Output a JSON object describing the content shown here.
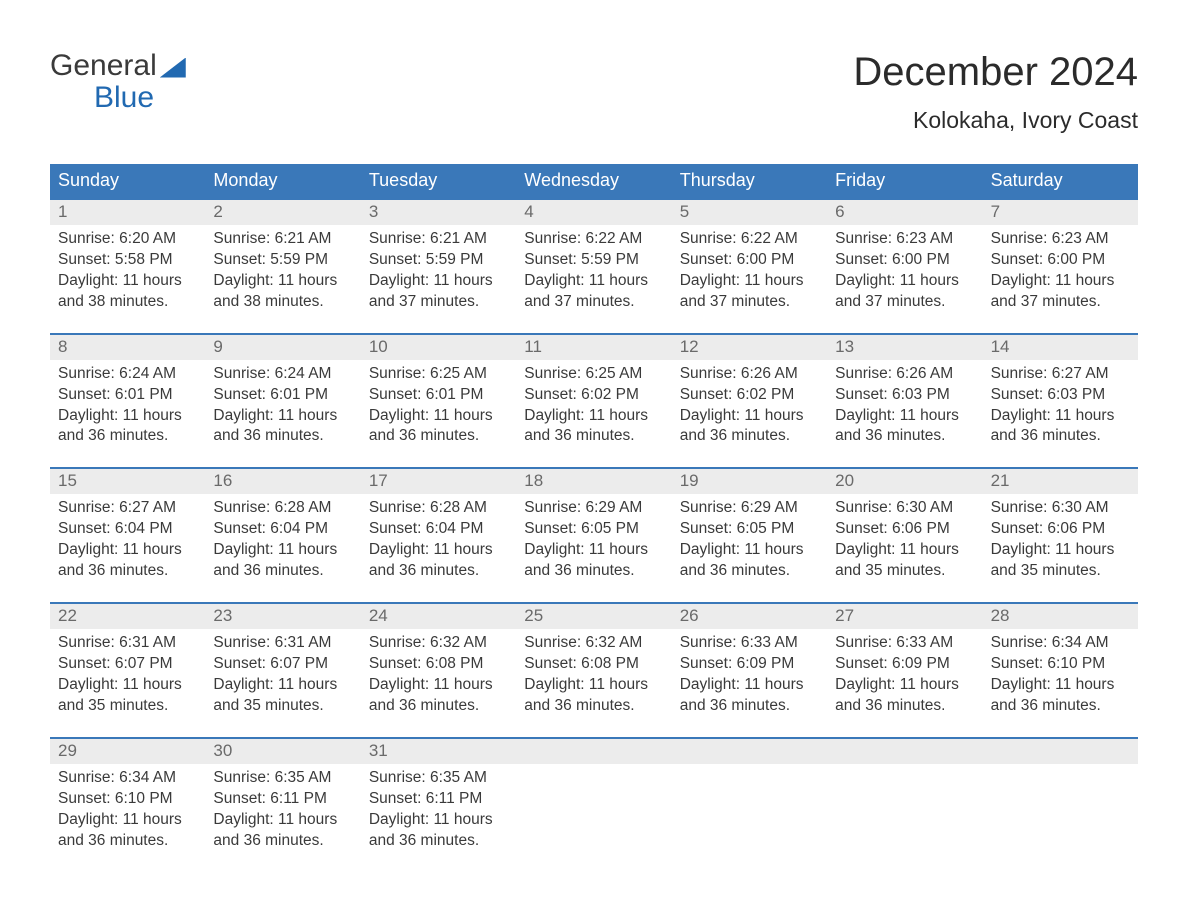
{
  "logo": {
    "text_top": "General",
    "text_bottom": "Blue"
  },
  "title": "December 2024",
  "location": "Kolokaha, Ivory Coast",
  "colors": {
    "header_bg": "#3a78b9",
    "header_text": "#ffffff",
    "row_border": "#3a78b9",
    "daynum_bg": "#ececec",
    "daynum_text": "#6a6a6a",
    "body_text": "#3a3a3a",
    "logo_blue": "#2169b1",
    "page_bg": "#ffffff"
  },
  "weekdays": [
    "Sunday",
    "Monday",
    "Tuesday",
    "Wednesday",
    "Thursday",
    "Friday",
    "Saturday"
  ],
  "weeks": [
    [
      {
        "n": "1",
        "sunrise": "6:20 AM",
        "sunset": "5:58 PM",
        "dl": "11 hours and 38 minutes."
      },
      {
        "n": "2",
        "sunrise": "6:21 AM",
        "sunset": "5:59 PM",
        "dl": "11 hours and 38 minutes."
      },
      {
        "n": "3",
        "sunrise": "6:21 AM",
        "sunset": "5:59 PM",
        "dl": "11 hours and 37 minutes."
      },
      {
        "n": "4",
        "sunrise": "6:22 AM",
        "sunset": "5:59 PM",
        "dl": "11 hours and 37 minutes."
      },
      {
        "n": "5",
        "sunrise": "6:22 AM",
        "sunset": "6:00 PM",
        "dl": "11 hours and 37 minutes."
      },
      {
        "n": "6",
        "sunrise": "6:23 AM",
        "sunset": "6:00 PM",
        "dl": "11 hours and 37 minutes."
      },
      {
        "n": "7",
        "sunrise": "6:23 AM",
        "sunset": "6:00 PM",
        "dl": "11 hours and 37 minutes."
      }
    ],
    [
      {
        "n": "8",
        "sunrise": "6:24 AM",
        "sunset": "6:01 PM",
        "dl": "11 hours and 36 minutes."
      },
      {
        "n": "9",
        "sunrise": "6:24 AM",
        "sunset": "6:01 PM",
        "dl": "11 hours and 36 minutes."
      },
      {
        "n": "10",
        "sunrise": "6:25 AM",
        "sunset": "6:01 PM",
        "dl": "11 hours and 36 minutes."
      },
      {
        "n": "11",
        "sunrise": "6:25 AM",
        "sunset": "6:02 PM",
        "dl": "11 hours and 36 minutes."
      },
      {
        "n": "12",
        "sunrise": "6:26 AM",
        "sunset": "6:02 PM",
        "dl": "11 hours and 36 minutes."
      },
      {
        "n": "13",
        "sunrise": "6:26 AM",
        "sunset": "6:03 PM",
        "dl": "11 hours and 36 minutes."
      },
      {
        "n": "14",
        "sunrise": "6:27 AM",
        "sunset": "6:03 PM",
        "dl": "11 hours and 36 minutes."
      }
    ],
    [
      {
        "n": "15",
        "sunrise": "6:27 AM",
        "sunset": "6:04 PM",
        "dl": "11 hours and 36 minutes."
      },
      {
        "n": "16",
        "sunrise": "6:28 AM",
        "sunset": "6:04 PM",
        "dl": "11 hours and 36 minutes."
      },
      {
        "n": "17",
        "sunrise": "6:28 AM",
        "sunset": "6:04 PM",
        "dl": "11 hours and 36 minutes."
      },
      {
        "n": "18",
        "sunrise": "6:29 AM",
        "sunset": "6:05 PM",
        "dl": "11 hours and 36 minutes."
      },
      {
        "n": "19",
        "sunrise": "6:29 AM",
        "sunset": "6:05 PM",
        "dl": "11 hours and 36 minutes."
      },
      {
        "n": "20",
        "sunrise": "6:30 AM",
        "sunset": "6:06 PM",
        "dl": "11 hours and 35 minutes."
      },
      {
        "n": "21",
        "sunrise": "6:30 AM",
        "sunset": "6:06 PM",
        "dl": "11 hours and 35 minutes."
      }
    ],
    [
      {
        "n": "22",
        "sunrise": "6:31 AM",
        "sunset": "6:07 PM",
        "dl": "11 hours and 35 minutes."
      },
      {
        "n": "23",
        "sunrise": "6:31 AM",
        "sunset": "6:07 PM",
        "dl": "11 hours and 35 minutes."
      },
      {
        "n": "24",
        "sunrise": "6:32 AM",
        "sunset": "6:08 PM",
        "dl": "11 hours and 36 minutes."
      },
      {
        "n": "25",
        "sunrise": "6:32 AM",
        "sunset": "6:08 PM",
        "dl": "11 hours and 36 minutes."
      },
      {
        "n": "26",
        "sunrise": "6:33 AM",
        "sunset": "6:09 PM",
        "dl": "11 hours and 36 minutes."
      },
      {
        "n": "27",
        "sunrise": "6:33 AM",
        "sunset": "6:09 PM",
        "dl": "11 hours and 36 minutes."
      },
      {
        "n": "28",
        "sunrise": "6:34 AM",
        "sunset": "6:10 PM",
        "dl": "11 hours and 36 minutes."
      }
    ],
    [
      {
        "n": "29",
        "sunrise": "6:34 AM",
        "sunset": "6:10 PM",
        "dl": "11 hours and 36 minutes."
      },
      {
        "n": "30",
        "sunrise": "6:35 AM",
        "sunset": "6:11 PM",
        "dl": "11 hours and 36 minutes."
      },
      {
        "n": "31",
        "sunrise": "6:35 AM",
        "sunset": "6:11 PM",
        "dl": "11 hours and 36 minutes."
      },
      null,
      null,
      null,
      null
    ]
  ],
  "labels": {
    "sunrise_prefix": "Sunrise: ",
    "sunset_prefix": "Sunset: ",
    "daylight_prefix": "Daylight: "
  }
}
